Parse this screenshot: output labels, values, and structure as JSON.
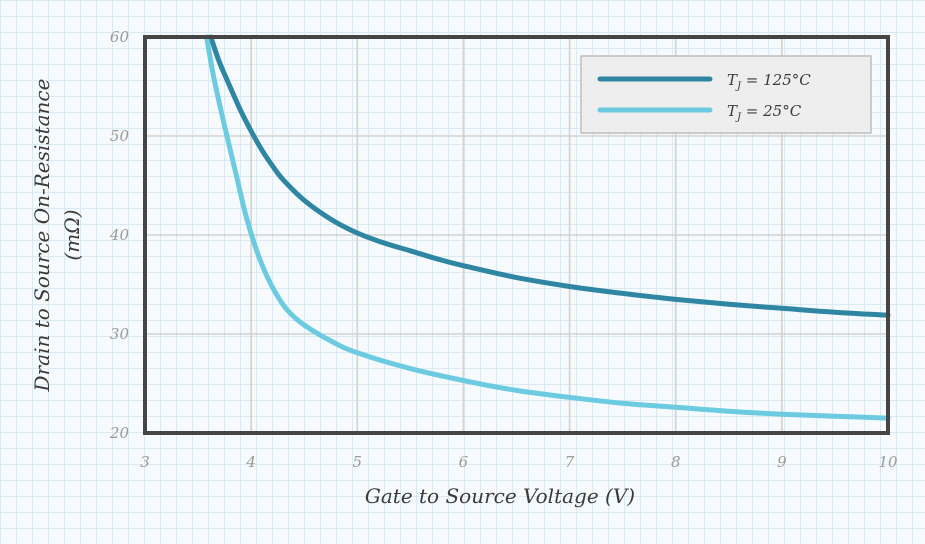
{
  "chart_data": {
    "type": "line",
    "xlabel": "Gate to Source Voltage (V)",
    "ylabel_line1": "Drain to Source On-Resistance",
    "ylabel_line2": "(mΩ)",
    "xlim": [
      3,
      10
    ],
    "ylim": [
      20,
      60
    ],
    "x_ticks": [
      "3",
      "4",
      "5",
      "6",
      "7",
      "8",
      "9",
      "10"
    ],
    "y_ticks": [
      "20",
      "30",
      "40",
      "50",
      "60"
    ],
    "grid": true,
    "legend_position": "top-right",
    "series": [
      {
        "name": "T_J = 125°C",
        "legend_main": "T",
        "legend_sub": "J",
        "legend_rest": " = 125°C",
        "color": "#2e86a3",
        "x": [
          3.62,
          3.7,
          3.8,
          3.9,
          4.0,
          4.1,
          4.2,
          4.3,
          4.5,
          4.75,
          5.0,
          5.25,
          5.5,
          5.75,
          6.0,
          6.5,
          7.0,
          7.5,
          8.0,
          8.5,
          9.0,
          9.5,
          10.0
        ],
        "y": [
          60.0,
          57.5,
          55.0,
          52.6,
          50.5,
          48.6,
          47.0,
          45.6,
          43.5,
          41.6,
          40.2,
          39.2,
          38.4,
          37.6,
          36.9,
          35.7,
          34.8,
          34.1,
          33.5,
          33.0,
          32.6,
          32.2,
          31.9
        ]
      },
      {
        "name": "T_J = 25°C",
        "legend_main": "T",
        "legend_sub": "J",
        "legend_rest": " = 25°C",
        "color": "#6ccbe0",
        "x": [
          3.58,
          3.65,
          3.75,
          3.85,
          3.95,
          4.05,
          4.15,
          4.25,
          4.35,
          4.5,
          4.75,
          5.0,
          5.5,
          6.0,
          6.5,
          7.0,
          7.5,
          8.0,
          8.5,
          9.0,
          9.5,
          10.0
        ],
        "y": [
          60.0,
          55.8,
          51.0,
          46.5,
          42.0,
          38.5,
          35.8,
          33.8,
          32.3,
          30.9,
          29.3,
          28.1,
          26.5,
          25.3,
          24.3,
          23.6,
          23.0,
          22.6,
          22.2,
          21.9,
          21.7,
          21.5
        ]
      }
    ]
  }
}
